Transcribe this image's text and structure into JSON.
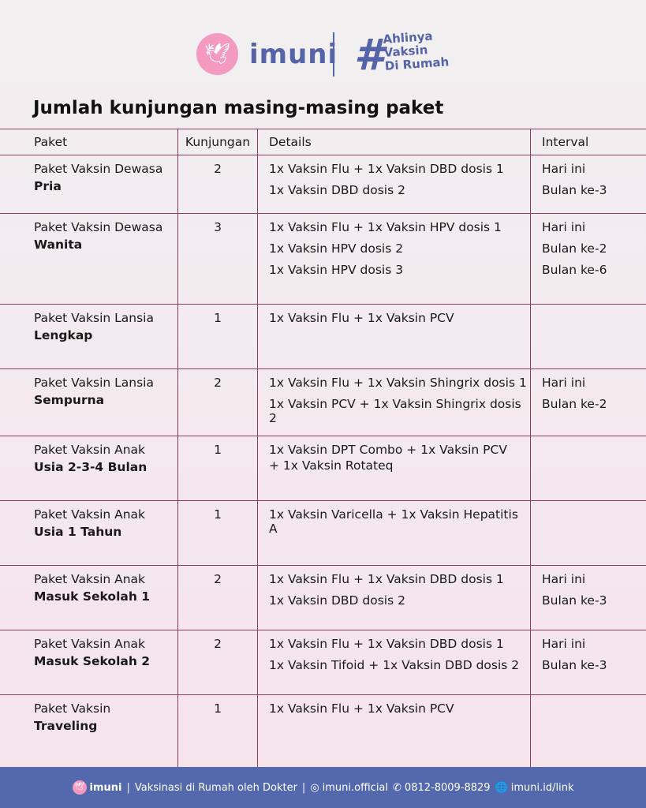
{
  "header": {
    "brand": "imuni",
    "tagline": [
      "Ahlinya",
      "Vaksin",
      "Di Rumah"
    ],
    "hash": "#"
  },
  "title": "Jumlah kunjungan masing-masing paket",
  "table": {
    "columns": [
      "Paket",
      "Kunjungan",
      "Details",
      "Interval"
    ],
    "rows": [
      {
        "name": "Paket Vaksin Dewasa",
        "sub": "Pria",
        "visits": "2",
        "details": [
          "1x Vaksin Flu + 1x Vaksin DBD dosis 1",
          "1x Vaksin DBD dosis 2"
        ],
        "interval": [
          "Hari ini",
          "Bulan ke-3"
        ]
      },
      {
        "name": "Paket Vaksin Dewasa",
        "sub": "Wanita",
        "visits": "3",
        "details": [
          "1x Vaksin Flu + 1x Vaksin HPV dosis 1",
          "1x Vaksin HPV dosis 2",
          "1x Vaksin HPV dosis 3"
        ],
        "interval": [
          "Hari ini",
          "Bulan ke-2",
          "Bulan ke-6"
        ]
      },
      {
        "name": "Paket Vaksin Lansia",
        "sub": "Lengkap",
        "visits": "1",
        "details": [
          "1x Vaksin Flu + 1x Vaksin PCV"
        ],
        "interval": []
      },
      {
        "name": "Paket Vaksin Lansia",
        "sub": "Sempurna",
        "visits": "2",
        "details": [
          "1x Vaksin Flu + 1x Vaksin Shingrix dosis 1",
          "1x Vaksin PCV + 1x Vaksin Shingrix dosis 2"
        ],
        "interval": [
          "Hari ini",
          "Bulan ke-2"
        ]
      },
      {
        "name": "Paket Vaksin Anak",
        "sub": "Usia 2-3-4 Bulan",
        "visits": "1",
        "details": [
          "1x Vaksin DPT Combo + 1x Vaksin PCV",
          "+ 1x Vaksin Rotateq"
        ],
        "interval": [],
        "wrap": true
      },
      {
        "name": "Paket Vaksin Anak",
        "sub": "Usia 1 Tahun",
        "visits": "1",
        "details": [
          "1x Vaksin Varicella + 1x Vaksin Hepatitis A"
        ],
        "interval": []
      },
      {
        "name": "Paket Vaksin Anak",
        "sub": "Masuk Sekolah 1",
        "visits": "2",
        "details": [
          "1x Vaksin Flu + 1x Vaksin DBD dosis 1",
          "1x Vaksin DBD dosis 2"
        ],
        "interval": [
          "Hari ini",
          "Bulan ke-3"
        ]
      },
      {
        "name": "Paket Vaksin Anak",
        "sub": "Masuk Sekolah 2",
        "visits": "2",
        "details": [
          "1x Vaksin Flu + 1x Vaksin DBD dosis 1",
          "1x Vaksin Tifoid + 1x Vaksin DBD dosis 2"
        ],
        "interval": [
          "Hari ini",
          "Bulan ke-3"
        ]
      },
      {
        "name": "Paket Vaksin",
        "sub": "Traveling",
        "visits": "1",
        "details": [
          "1x Vaksin Flu + 1x Vaksin PCV"
        ],
        "interval": []
      }
    ]
  },
  "footer": {
    "brand": "imuni",
    "slogan": "Vaksinasi di Rumah oleh Dokter",
    "instagram": "imuni.official",
    "whatsapp": "0812-8009-8829",
    "website": "imuni.id/link"
  },
  "colors": {
    "brand_blue": "#5468ae",
    "brand_pink": "#f49ac1",
    "table_border": "#8b3a62"
  }
}
